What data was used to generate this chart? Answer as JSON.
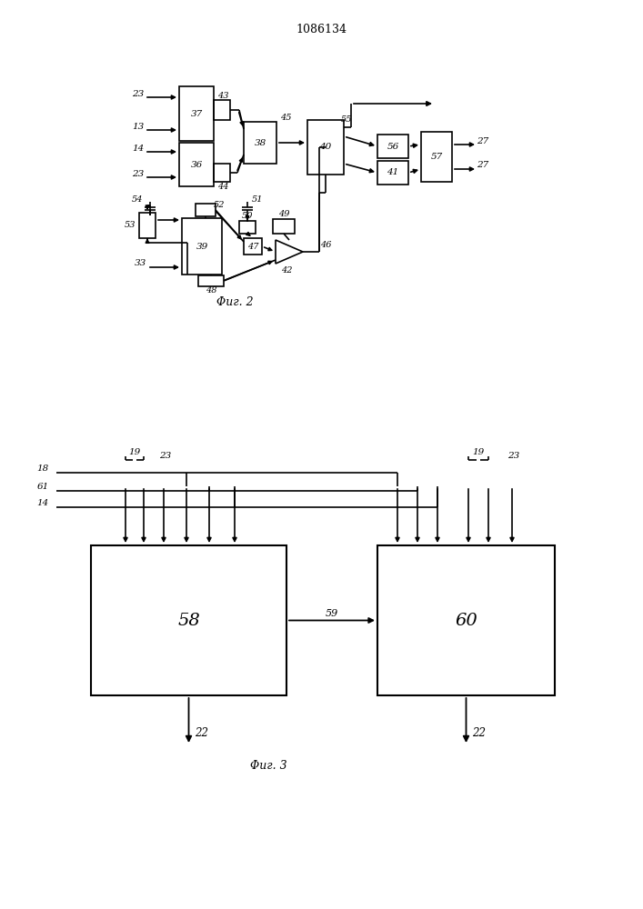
{
  "title": "1086134",
  "fig2_caption": "Φиг. 2",
  "fig3_caption": "Φиг. 3",
  "bg_color": "#ffffff",
  "line_color": "#000000",
  "text_color": "#000000"
}
